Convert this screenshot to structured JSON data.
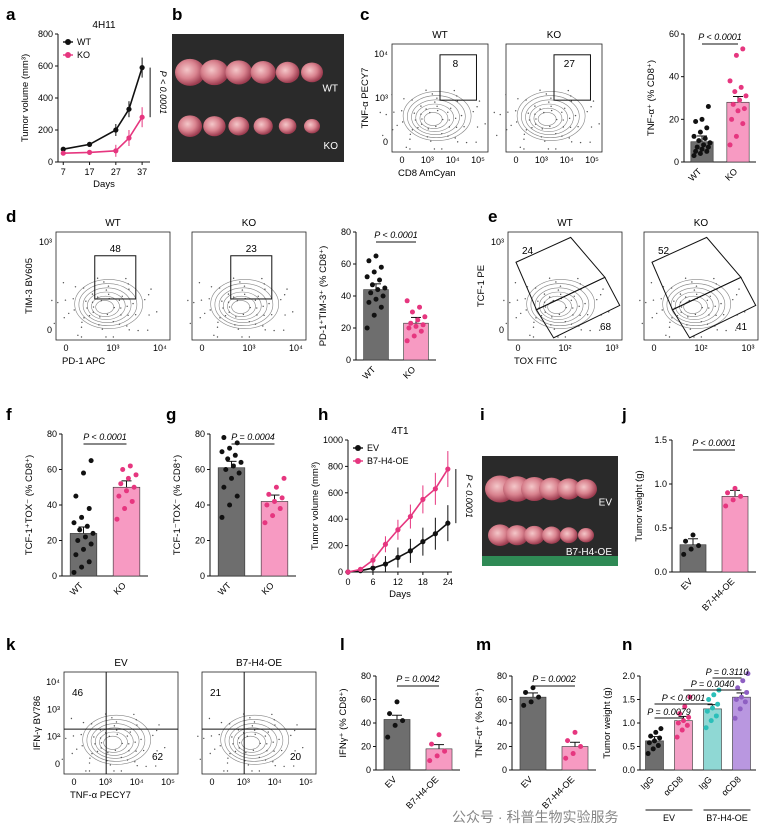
{
  "watermark": "公众号 · 科普生物实验服务",
  "colors": {
    "wt": "#111111",
    "ko": "#e6367f",
    "bar_wt": "#6e6e6e",
    "bar_ko": "#f79ac2",
    "teal": "#2bbfb9",
    "purple": "#8e5fc2"
  },
  "photos": {
    "b": {
      "label_top": "WT",
      "label_bottom": "KO"
    },
    "i": {
      "label_top": "EV",
      "label_bottom": "B7-H4-OE"
    }
  },
  "panels": {
    "a": {
      "letter": "a"
    },
    "b": {
      "letter": "b"
    },
    "c": {
      "letter": "c"
    },
    "d": {
      "letter": "d"
    },
    "e": {
      "letter": "e"
    },
    "f": {
      "letter": "f"
    },
    "g": {
      "letter": "g"
    },
    "h": {
      "letter": "h"
    },
    "i": {
      "letter": "i"
    },
    "j": {
      "letter": "j"
    },
    "k": {
      "letter": "k"
    },
    "l": {
      "letter": "l"
    },
    "m": {
      "letter": "m"
    },
    "n": {
      "letter": "n"
    }
  },
  "flows": {
    "c": {
      "ylabel": "TNF-α PECY7",
      "xlabel": "CD8 AmCyan",
      "yticks": [
        "10⁴",
        "10³",
        "0"
      ],
      "xticks": [
        "0",
        "10³",
        "10⁴",
        "10⁵"
      ],
      "plots": [
        {
          "title": "WT",
          "gate": "8"
        },
        {
          "title": "KO",
          "gate": "27"
        }
      ]
    },
    "d": {
      "ylabel": "TIM-3 BV605",
      "xlabel": "PD-1 APC",
      "yticks": [
        "10³",
        "0"
      ],
      "xticks": [
        "0",
        "10³",
        "10⁴"
      ],
      "plots": [
        {
          "title": "WT",
          "gate": "48"
        },
        {
          "title": "KO",
          "gate": "23"
        }
      ]
    },
    "e": {
      "ylabel": "TCF-1 PE",
      "xlabel": "TOX FITC",
      "yticks": [
        "10³",
        "0"
      ],
      "xticks": [
        "0",
        "10²",
        "10³"
      ],
      "plots": [
        {
          "title": "WT",
          "gate_top": "24",
          "gate_bottom": "68"
        },
        {
          "title": "KO",
          "gate_top": "52",
          "gate_bottom": "41"
        }
      ]
    },
    "k": {
      "ylabel": "IFN-γ BV786",
      "xlabel": "TNF-α PECY7",
      "yticks": [
        "10⁴",
        "10³",
        "10²",
        "0"
      ],
      "xticks": [
        "0",
        "10³",
        "10⁴",
        "10⁵"
      ],
      "plots": [
        {
          "title": "EV",
          "q_tl": "46",
          "q_br": "62"
        },
        {
          "title": "B7-H4-OE",
          "q_tl": "21",
          "q_br": "20"
        }
      ]
    }
  },
  "chart_data": [
    {
      "panel": "a",
      "type": "line",
      "title": "4H11",
      "xlabel": "Days",
      "ylabel": "Tumor volume (mm³)",
      "x": [
        7,
        17,
        27,
        32,
        37
      ],
      "xlim": [
        5,
        40
      ],
      "ylim": [
        0,
        800
      ],
      "xticks": [
        7,
        17,
        27,
        37
      ],
      "yticks": [
        0,
        200,
        400,
        600,
        800
      ],
      "pvalue": "P < 0.0001",
      "legend": "top-left",
      "series": [
        {
          "name": "WT",
          "values": [
            80,
            110,
            200,
            330,
            590
          ]
        },
        {
          "name": "KO",
          "values": [
            55,
            60,
            70,
            150,
            280
          ]
        }
      ]
    },
    {
      "panel": "h",
      "type": "line",
      "title": "4T1",
      "xlabel": "Days",
      "ylabel": "Tumor volume (mm³)",
      "x": [
        0,
        3,
        6,
        9,
        12,
        15,
        18,
        21,
        24
      ],
      "xlim": [
        0,
        25
      ],
      "ylim": [
        0,
        1000
      ],
      "xticks": [
        0,
        6,
        12,
        18,
        24
      ],
      "yticks": [
        0,
        200,
        400,
        600,
        800,
        1000
      ],
      "pvalue": "P < 0.0001",
      "legend": "top-left",
      "series": [
        {
          "name": "EV",
          "values": [
            0,
            10,
            30,
            60,
            110,
            160,
            230,
            290,
            370
          ]
        },
        {
          "name": "B7-H4-OE",
          "values": [
            0,
            20,
            90,
            210,
            320,
            420,
            550,
            630,
            780
          ]
        }
      ]
    },
    {
      "panel": "c",
      "type": "bar",
      "ylabel": "TNF-α⁺ (% CD8⁺)",
      "categories": [
        "WT",
        "KO"
      ],
      "values": [
        9.5,
        28
      ],
      "ylim": [
        0,
        60
      ],
      "yticks": [
        0,
        20,
        40,
        60
      ],
      "pvalue": "P < 0.0001",
      "points": [
        [
          3,
          4,
          5,
          5,
          6,
          7,
          7,
          8,
          9,
          10,
          11,
          12,
          14,
          16,
          19,
          20,
          26
        ],
        [
          8,
          12,
          18,
          20,
          24,
          25,
          27,
          29,
          31,
          33,
          35,
          38,
          50,
          53
        ]
      ]
    },
    {
      "panel": "d",
      "type": "bar",
      "ylabel": "PD-1⁺TIM-3⁺ (% CD8⁺)",
      "categories": [
        "WT",
        "KO"
      ],
      "values": [
        44,
        23
      ],
      "ylim": [
        0,
        80
      ],
      "yticks": [
        0,
        20,
        40,
        60,
        80
      ],
      "pvalue": "P < 0.0001",
      "points": [
        [
          20,
          28,
          33,
          36,
          38,
          40,
          42,
          44,
          45,
          47,
          50,
          52,
          55,
          58,
          62,
          65
        ],
        [
          12,
          15,
          18,
          20,
          21,
          22,
          23,
          25,
          27,
          30,
          33,
          37
        ]
      ]
    },
    {
      "panel": "f",
      "type": "bar",
      "ylabel": "TCF-1⁺TOX⁻ (% CD8⁺)",
      "categories": [
        "WT",
        "KO"
      ],
      "values": [
        24,
        50
      ],
      "ylim": [
        0,
        80
      ],
      "yticks": [
        0,
        20,
        40,
        60,
        80
      ],
      "pvalue": "P < 0.0001",
      "points": [
        [
          2,
          5,
          8,
          12,
          15,
          18,
          20,
          22,
          24,
          26,
          28,
          30,
          33,
          38,
          45,
          58,
          65
        ],
        [
          32,
          38,
          42,
          45,
          48,
          50,
          52,
          55,
          57,
          60,
          62
        ]
      ]
    },
    {
      "panel": "g",
      "type": "bar",
      "ylabel": "TCF-1⁻TOX⁻ (% CD8⁺)",
      "categories": [
        "WT",
        "KO"
      ],
      "values": [
        61,
        42
      ],
      "ylim": [
        0,
        80
      ],
      "yticks": [
        0,
        20,
        40,
        60,
        80
      ],
      "pvalue": "P = 0.0004",
      "points": [
        [
          33,
          40,
          45,
          50,
          55,
          58,
          60,
          62,
          64,
          66,
          68,
          70,
          72,
          75,
          78
        ],
        [
          30,
          34,
          38,
          40,
          42,
          44,
          46,
          50,
          55
        ]
      ]
    },
    {
      "panel": "j",
      "type": "bar",
      "ylabel": "Tumor weight (g)",
      "categories": [
        "EV",
        "B7-H4-OE"
      ],
      "values": [
        0.31,
        0.86
      ],
      "ylim": [
        0,
        1.5
      ],
      "yticks": [
        0.0,
        0.5,
        1.0,
        1.5
      ],
      "pvalue": "P < 0.0001",
      "points": [
        [
          0.2,
          0.26,
          0.3,
          0.35,
          0.42
        ],
        [
          0.75,
          0.82,
          0.86,
          0.9,
          0.95
        ]
      ]
    },
    {
      "panel": "l",
      "type": "bar",
      "ylabel": "IFNγ⁺ (% CD8⁺)",
      "categories": [
        "EV",
        "B7-H4-OE"
      ],
      "values": [
        43,
        18
      ],
      "ylim": [
        0,
        80
      ],
      "yticks": [
        0,
        20,
        40,
        60,
        80
      ],
      "pvalue": "P = 0.0042",
      "points": [
        [
          28,
          38,
          42,
          48,
          58
        ],
        [
          8,
          12,
          16,
          22,
          30
        ]
      ]
    },
    {
      "panel": "m",
      "type": "bar",
      "ylabel": "TNF-α⁺ (% D8⁺)",
      "categories": [
        "EV",
        "B7-H4-OE"
      ],
      "values": [
        62,
        20
      ],
      "ylim": [
        0,
        80
      ],
      "yticks": [
        0,
        20,
        40,
        60,
        80
      ],
      "pvalue": "P = 0.0002",
      "points": [
        [
          55,
          58,
          62,
          66,
          70
        ],
        [
          10,
          14,
          20,
          25,
          32
        ]
      ]
    },
    {
      "panel": "n",
      "type": "bar",
      "ylabel": "Tumor weight (g)",
      "categories": [
        "IgG",
        "αCD8",
        "IgG",
        "αCD8"
      ],
      "groups": [
        "EV",
        "B7-H4-OE"
      ],
      "values": [
        0.62,
        1.05,
        1.3,
        1.55
      ],
      "ylim": [
        0,
        2.0
      ],
      "yticks": [
        0.0,
        0.5,
        1.0,
        1.5,
        2.0
      ],
      "points": [
        [
          0.35,
          0.45,
          0.52,
          0.58,
          0.62,
          0.68,
          0.72,
          0.8,
          0.88
        ],
        [
          0.7,
          0.85,
          0.95,
          1.0,
          1.05,
          1.12,
          1.2,
          1.35,
          1.55
        ],
        [
          0.9,
          1.05,
          1.15,
          1.25,
          1.32,
          1.4,
          1.5,
          1.6,
          1.7
        ],
        [
          1.1,
          1.3,
          1.45,
          1.5,
          1.55,
          1.65,
          1.75,
          1.9,
          2.05
        ]
      ],
      "comparisons": [
        {
          "label": "P = 0.0079",
          "pair": [
            0,
            1
          ]
        },
        {
          "label": "P < 0.0001",
          "pair": [
            0,
            2
          ]
        },
        {
          "label": "P = 0.0040",
          "pair": [
            1,
            3
          ]
        },
        {
          "label": "P = 0.3110",
          "pair": [
            2,
            3
          ]
        }
      ]
    }
  ]
}
